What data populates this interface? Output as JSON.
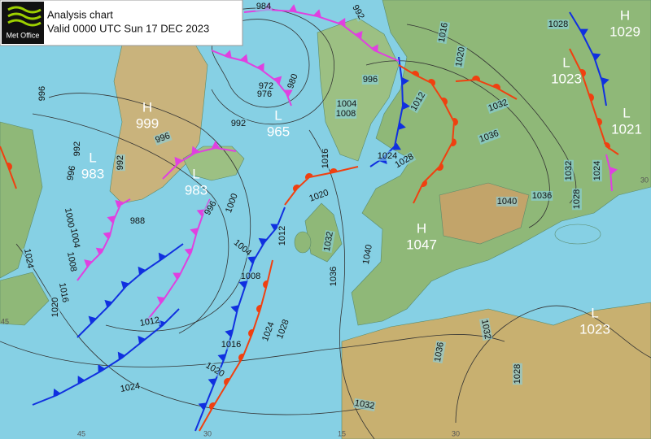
{
  "header": {
    "logo": "Met Office",
    "title": "Analysis chart",
    "valid": "Valid 0000 UTC Sun 17 DEC 2023"
  },
  "centers": [
    {
      "type": "H",
      "value": "1029"
    },
    {
      "type": "L",
      "value": "1023"
    },
    {
      "type": "L",
      "value": "1021"
    },
    {
      "type": "H",
      "value": "999"
    },
    {
      "type": "L",
      "value": "965"
    },
    {
      "type": "L",
      "value": "983"
    },
    {
      "type": "L",
      "value": "983"
    },
    {
      "type": "H",
      "value": "1047"
    },
    {
      "type": "L",
      "value": "1023"
    }
  ],
  "isobar_labels": [
    "984",
    "992",
    "1016",
    "1020",
    "1028",
    "996",
    "1004",
    "1008",
    "1012",
    "1032",
    "1036",
    "1040",
    "1036",
    "1032",
    "1028",
    "1024",
    "1024",
    "1028",
    "1016",
    "1020",
    "1032",
    "1036",
    "1040",
    "1012",
    "1004",
    "1008",
    "996",
    "1000",
    "992",
    "996",
    "992",
    "988",
    "996",
    "1000",
    "1004",
    "1008",
    "992",
    "1016",
    "1020",
    "1024",
    "1012",
    "1016",
    "1020",
    "1024",
    "1024",
    "1028",
    "1032",
    "1036",
    "1032",
    "1028",
    "996",
    "972",
    "976",
    "980"
  ],
  "grid_labels": [
    "45",
    "30",
    "15",
    "30",
    "45",
    "30"
  ]
}
